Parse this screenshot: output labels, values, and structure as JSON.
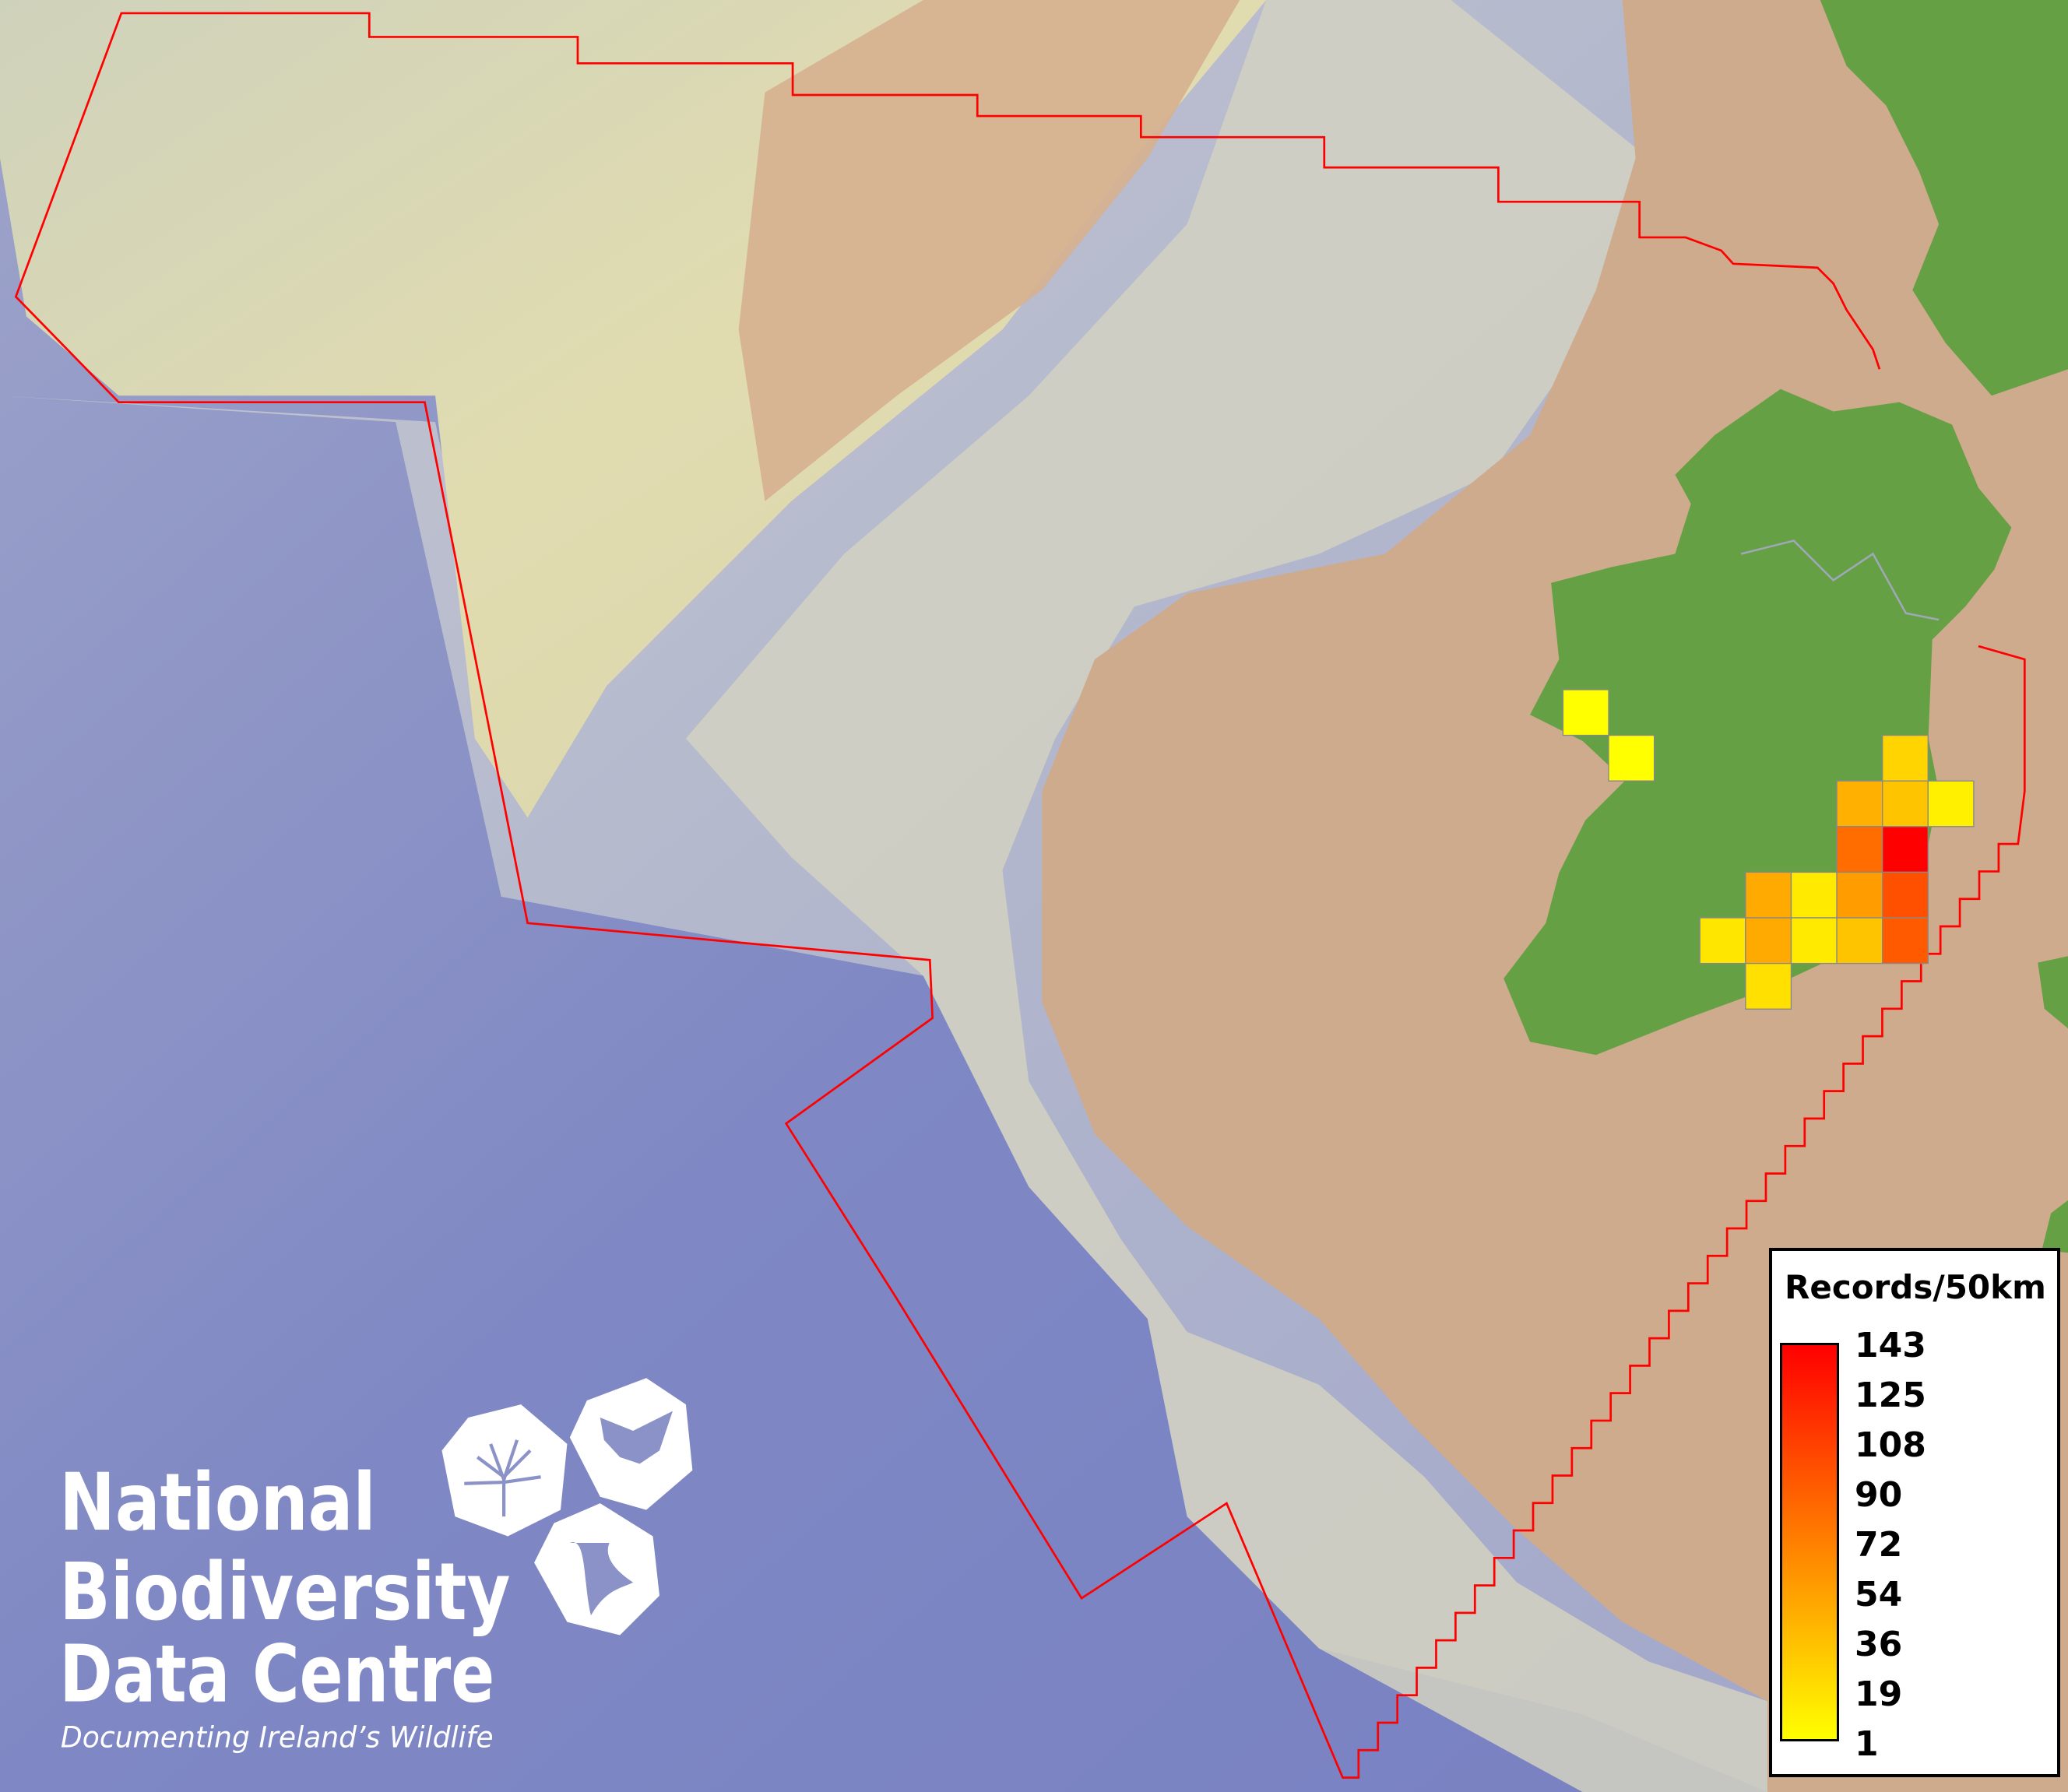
{
  "map": {
    "layers": [
      "bathymetry-relief",
      "land-ireland",
      "land-scotland",
      "boundary-line",
      "record-grid"
    ],
    "colors": {
      "deep_sea": "#7f88c4",
      "slope": "#a9aec9",
      "shelf_pale": "#dfdcb8",
      "shelf_tan": "#cfab8e",
      "land": "#66a044",
      "boundary": "#ff0000",
      "cell_border": "#888888"
    }
  },
  "grid_cells": [
    {
      "col": 0,
      "row": 0,
      "value": 1,
      "color": "#ffff00"
    },
    {
      "col": 1,
      "row": 1,
      "value": 1,
      "color": "#ffff00"
    },
    {
      "col": 7,
      "row": 1,
      "value": 25,
      "color": "#ffd400"
    },
    {
      "col": 6,
      "row": 2,
      "value": 45,
      "color": "#ffb000"
    },
    {
      "col": 7,
      "row": 2,
      "value": 34,
      "color": "#ffc400"
    },
    {
      "col": 8,
      "row": 2,
      "value": 9,
      "color": "#fff000"
    },
    {
      "col": 6,
      "row": 3,
      "value": 83,
      "color": "#ff6c00"
    },
    {
      "col": 7,
      "row": 3,
      "value": 143,
      "color": "#ff0000"
    },
    {
      "col": 4,
      "row": 4,
      "value": 48,
      "color": "#ffaa00"
    },
    {
      "col": 5,
      "row": 4,
      "value": 13,
      "color": "#ffea00"
    },
    {
      "col": 6,
      "row": 4,
      "value": 56,
      "color": "#ff9c00"
    },
    {
      "col": 7,
      "row": 4,
      "value": 98,
      "color": "#ff5000"
    },
    {
      "col": 3,
      "row": 5,
      "value": 15,
      "color": "#ffe600"
    },
    {
      "col": 4,
      "row": 5,
      "value": 48,
      "color": "#ffaa00"
    },
    {
      "col": 5,
      "row": 5,
      "value": 13,
      "color": "#ffea00"
    },
    {
      "col": 6,
      "row": 5,
      "value": 34,
      "color": "#ffc400"
    },
    {
      "col": 7,
      "row": 5,
      "value": 93,
      "color": "#ff5a00"
    },
    {
      "col": 4,
      "row": 6,
      "value": 18,
      "color": "#ffe000"
    }
  ],
  "legend": {
    "title": "Records/50km",
    "labels": [
      "143",
      "125",
      "108",
      "90",
      "72",
      "54",
      "36",
      "19",
      "1"
    ],
    "color_min": "#ffff00",
    "color_max": "#ff0000"
  },
  "logo": {
    "line1": "National",
    "line2": "Biodiversity",
    "line3": "Data Centre",
    "tagline": "Documenting Ireland’s Wildlife",
    "icons": [
      "tree-icon",
      "butterfly-icon",
      "seahorse-icon"
    ]
  }
}
